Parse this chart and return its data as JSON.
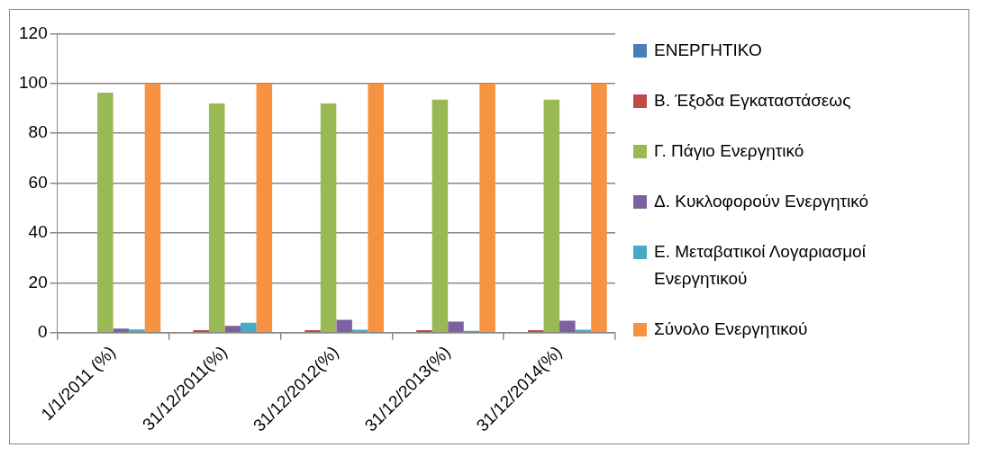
{
  "chart_data": {
    "type": "bar",
    "categories": [
      "1/1/2011 (%)",
      "31/12/2011(%)",
      "31/12/2012(%)",
      "31/12/2013(%)",
      "31/12/2014(%)"
    ],
    "series": [
      {
        "name": "ΕΝΕΡΓΗΤΙΚΟ",
        "color": "#4a7ebb",
        "values": [
          0,
          0,
          0,
          0,
          0
        ]
      },
      {
        "name": "Β. Έξοδα Εγκαταστάσεως",
        "color": "#be4b48",
        "values": [
          0,
          1,
          1,
          1,
          1
        ]
      },
      {
        "name": "Γ. Πάγιο Ενεργητικό",
        "color": "#98b954",
        "values": [
          96.3,
          92,
          92,
          93.5,
          93.5
        ]
      },
      {
        "name": "Δ. Κυκλοφορούν Ενεργητικό",
        "color": "#7d60a0",
        "values": [
          1.6,
          2.7,
          5.1,
          4.4,
          4.8
        ]
      },
      {
        "name": "Ε. Μεταβατικοί Λογαριασμοί Ενεργητικού",
        "color": "#46aac5",
        "values": [
          1.3,
          4,
          1.2,
          0.7,
          1.2
        ]
      },
      {
        "name": "Σύνολο Ενεργητικού",
        "color": "#f69240",
        "values": [
          100,
          100,
          100,
          100,
          100
        ]
      }
    ],
    "ylim": [
      0,
      120
    ],
    "yticks": [
      0,
      20,
      40,
      60,
      80,
      100,
      120
    ],
    "grid": "y",
    "legend": "right"
  }
}
